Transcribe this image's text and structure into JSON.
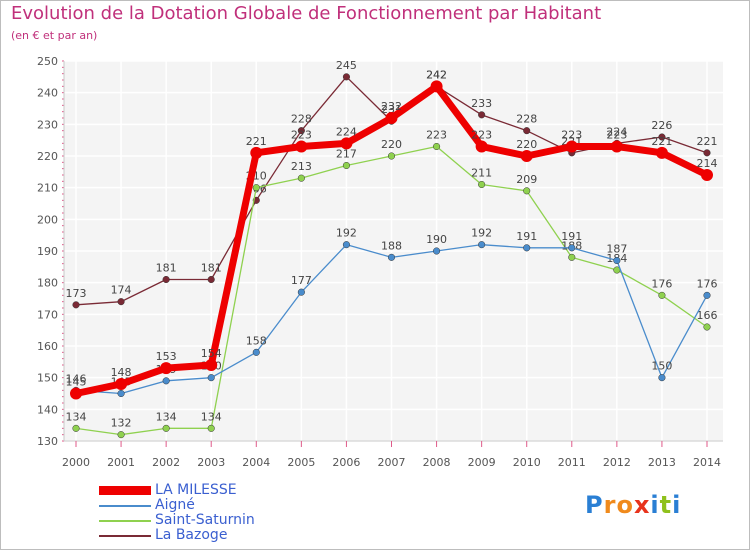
{
  "chart_data": {
    "type": "line",
    "title": "Evolution de la Dotation Globale de Fonctionnement par Habitant",
    "subtitle": "(en € et par an)",
    "xlabel": "",
    "ylabel": "",
    "categories": [
      "2000",
      "2001",
      "2002",
      "2003",
      "2004",
      "2005",
      "2006",
      "2007",
      "2008",
      "2009",
      "2010",
      "2011",
      "2012",
      "2013",
      "2014"
    ],
    "ylim": [
      130,
      250
    ],
    "yticks": [
      130,
      140,
      150,
      160,
      170,
      180,
      190,
      200,
      210,
      220,
      230,
      240,
      250
    ],
    "grid": true,
    "legend_position": "bottom-left",
    "series": [
      {
        "name": "La Bazoge",
        "color": "#7a2a35",
        "values": [
          173,
          174,
          181,
          181,
          206,
          228,
          245,
          231,
          242,
          233,
          228,
          221,
          224,
          226,
          221
        ],
        "labels": [
          "173",
          "174",
          "181",
          "181",
          "206",
          "228",
          "245",
          "231",
          "242",
          "233",
          "228",
          "221",
          "224",
          "226",
          "221"
        ]
      },
      {
        "name": "Saint-Saturnin",
        "color": "#8fd14f",
        "values": [
          134,
          132,
          134,
          134,
          210,
          213,
          217,
          220,
          223,
          211,
          209,
          188,
          184,
          176,
          166
        ],
        "labels": [
          "134",
          "132",
          "134",
          "134",
          "210",
          "213",
          "217",
          "220",
          "223",
          "211",
          "209",
          "188",
          "184",
          "176",
          "166"
        ]
      },
      {
        "name": "Aigné",
        "color": "#4a8ccc",
        "values": [
          146,
          145,
          149,
          150,
          158,
          177,
          192,
          188,
          190,
          192,
          191,
          191,
          187,
          150,
          176
        ],
        "labels": [
          "146",
          "145",
          "149",
          "150",
          "158",
          "177",
          "192",
          "188",
          "190",
          "192",
          "191",
          "191",
          "187",
          "150",
          "176"
        ]
      },
      {
        "name": "LA MILESSE",
        "color": "#ee0000",
        "values": [
          145,
          148,
          153,
          154,
          221,
          223,
          224,
          232,
          242,
          223,
          220,
          223,
          223,
          221,
          214
        ],
        "labels": [
          "145",
          "148",
          "153",
          "154",
          "221",
          "223",
          "224",
          "232",
          "242",
          "223",
          "220",
          "223",
          "223",
          "221",
          "214"
        ]
      }
    ]
  },
  "legend": {
    "items": [
      {
        "name": "LA MILESSE",
        "color": "#ee0000"
      },
      {
        "name": "Aigné",
        "color": "#4a8ccc"
      },
      {
        "name": "Saint-Saturnin",
        "color": "#8fd14f"
      },
      {
        "name": "La Bazoge",
        "color": "#7a2a35"
      }
    ]
  },
  "logo": {
    "letters": [
      "P",
      "r",
      "o",
      "x",
      "i",
      "t",
      "i"
    ],
    "colors": [
      "#2a7fd4",
      "#f08a1c",
      "#f08a1c",
      "#e8331c",
      "#2a7fd4",
      "#8fc11c",
      "#2a7fd4"
    ]
  }
}
